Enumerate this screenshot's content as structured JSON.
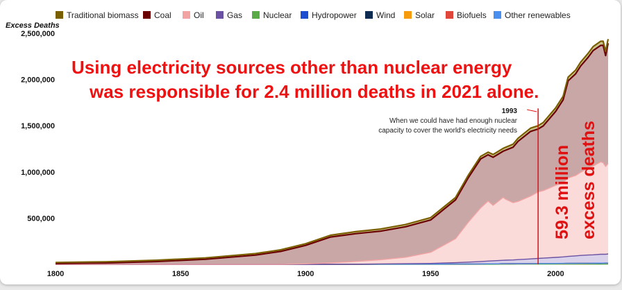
{
  "chart_data": {
    "type": "area",
    "stacked": true,
    "ylabel": "Excess Deaths",
    "xlim": [
      1800,
      2021
    ],
    "ylim": [
      0,
      2500000
    ],
    "x_ticks": [
      1800,
      1850,
      1900,
      1950,
      2000
    ],
    "y_ticks": [
      500000,
      1000000,
      1500000,
      2000000,
      2500000
    ],
    "y_tick_labels": [
      "500,000",
      "1,000,000",
      "1,500,000",
      "2,000,000",
      "2,500,000"
    ],
    "x_tick_labels": [
      "1800",
      "1850",
      "1900",
      "1950",
      "2000"
    ],
    "legend_position": "top",
    "x": [
      1800,
      1820,
      1840,
      1860,
      1880,
      1890,
      1900,
      1910,
      1920,
      1930,
      1940,
      1950,
      1960,
      1965,
      1970,
      1973,
      1975,
      1979,
      1980,
      1983,
      1985,
      1990,
      1993,
      1995,
      2000,
      2003,
      2005,
      2008,
      2010,
      2013,
      2015,
      2018,
      2019,
      2020,
      2021
    ],
    "series": [
      {
        "name": "Traditional biomass",
        "color": "#7a5f00",
        "values": [
          12000,
          13000,
          14000,
          15000,
          16000,
          17000,
          18000,
          20000,
          22000,
          23000,
          24000,
          25000,
          26000,
          27000,
          28000,
          29000,
          30000,
          31000,
          32000,
          33000,
          34000,
          35000,
          36000,
          37000,
          38000,
          39000,
          40000,
          41000,
          42000,
          43000,
          44000,
          45000,
          45000,
          45000,
          45000
        ]
      },
      {
        "name": "Coal",
        "color": "#6b0000",
        "values": [
          8000,
          15000,
          30000,
          55000,
          100000,
          140000,
          200000,
          280000,
          300000,
          310000,
          330000,
          350000,
          420000,
          480000,
          530000,
          500000,
          520000,
          500000,
          530000,
          600000,
          650000,
          700000,
          680000,
          700000,
          800000,
          900000,
          1050000,
          1100000,
          1150000,
          1200000,
          1250000,
          1260000,
          1270000,
          1200000,
          1300000
        ]
      },
      {
        "name": "Oil",
        "color": "#f2a3a3",
        "values": [
          0,
          0,
          0,
          0,
          0,
          0,
          5000,
          15000,
          30000,
          45000,
          70000,
          120000,
          260000,
          430000,
          580000,
          650000,
          600000,
          680000,
          660000,
          620000,
          630000,
          680000,
          720000,
          730000,
          780000,
          800000,
          850000,
          870000,
          900000,
          940000,
          960000,
          1000000,
          990000,
          950000,
          980000
        ]
      },
      {
        "name": "Gas",
        "color": "#6a51a3",
        "values": [
          0,
          0,
          0,
          0,
          0,
          0,
          0,
          0,
          1000,
          3000,
          5000,
          8000,
          15000,
          20000,
          26000,
          30000,
          33000,
          37000,
          38000,
          40000,
          43000,
          50000,
          55000,
          58000,
          65000,
          70000,
          75000,
          80000,
          84000,
          88000,
          90000,
          95000,
          96000,
          95000,
          98000
        ]
      },
      {
        "name": "Nuclear",
        "color": "#5aab47",
        "values": [
          0,
          0,
          0,
          0,
          0,
          0,
          0,
          0,
          0,
          0,
          0,
          0,
          0,
          200,
          500,
          800,
          1000,
          1500,
          1600,
          1800,
          2000,
          2200,
          2300,
          2300,
          2400,
          2400,
          2400,
          2400,
          2400,
          2300,
          2300,
          2300,
          2300,
          2300,
          2300
        ]
      },
      {
        "name": "Hydropower",
        "color": "#1f4fd1",
        "values": [
          0,
          0,
          0,
          0,
          0,
          0,
          200,
          500,
          800,
          1200,
          1600,
          2000,
          3000,
          3500,
          4000,
          4300,
          4500,
          5000,
          5200,
          5500,
          5800,
          6200,
          6500,
          6700,
          7200,
          7500,
          7800,
          8200,
          8500,
          8800,
          9000,
          9300,
          9400,
          9500,
          9600
        ]
      },
      {
        "name": "Wind",
        "color": "#0e2c52",
        "values": [
          0,
          0,
          0,
          0,
          0,
          0,
          0,
          0,
          0,
          0,
          0,
          0,
          0,
          0,
          0,
          0,
          0,
          0,
          0,
          0,
          0,
          0,
          0,
          0,
          50,
          80,
          120,
          200,
          300,
          450,
          550,
          700,
          750,
          800,
          900
        ]
      },
      {
        "name": "Solar",
        "color": "#f59b0c",
        "values": [
          0,
          0,
          0,
          0,
          0,
          0,
          0,
          0,
          0,
          0,
          0,
          0,
          0,
          0,
          0,
          0,
          0,
          0,
          0,
          0,
          0,
          0,
          0,
          0,
          0,
          0,
          0,
          50,
          100,
          250,
          400,
          600,
          700,
          800,
          900
        ]
      },
      {
        "name": "Biofuels",
        "color": "#e0473a",
        "values": [
          0,
          0,
          0,
          0,
          0,
          0,
          0,
          0,
          0,
          0,
          0,
          0,
          0,
          0,
          0,
          0,
          0,
          0,
          0,
          0,
          0,
          0,
          0,
          0,
          100,
          150,
          200,
          300,
          400,
          450,
          500,
          550,
          560,
          540,
          560
        ]
      },
      {
        "name": "Other renewables",
        "color": "#4a8ef0",
        "values": [
          0,
          0,
          0,
          0,
          0,
          0,
          0,
          0,
          0,
          0,
          0,
          0,
          0,
          0,
          0,
          0,
          0,
          0,
          0,
          0,
          0,
          0,
          0,
          0,
          50,
          60,
          70,
          90,
          100,
          120,
          130,
          150,
          160,
          160,
          170
        ]
      }
    ],
    "headline": [
      "Using electricity sources other than nuclear energy",
      "was responsible for 2.4 million deaths in 2021 alone."
    ],
    "annotation": {
      "year": 1993,
      "label": "1993",
      "text_lines": [
        "When we could have had enough nuclear",
        "capacity to cover the world's electricity needs"
      ],
      "line_color": "#e01010"
    },
    "vertical_annotation": [
      "59.3 million",
      "excess deaths"
    ]
  }
}
